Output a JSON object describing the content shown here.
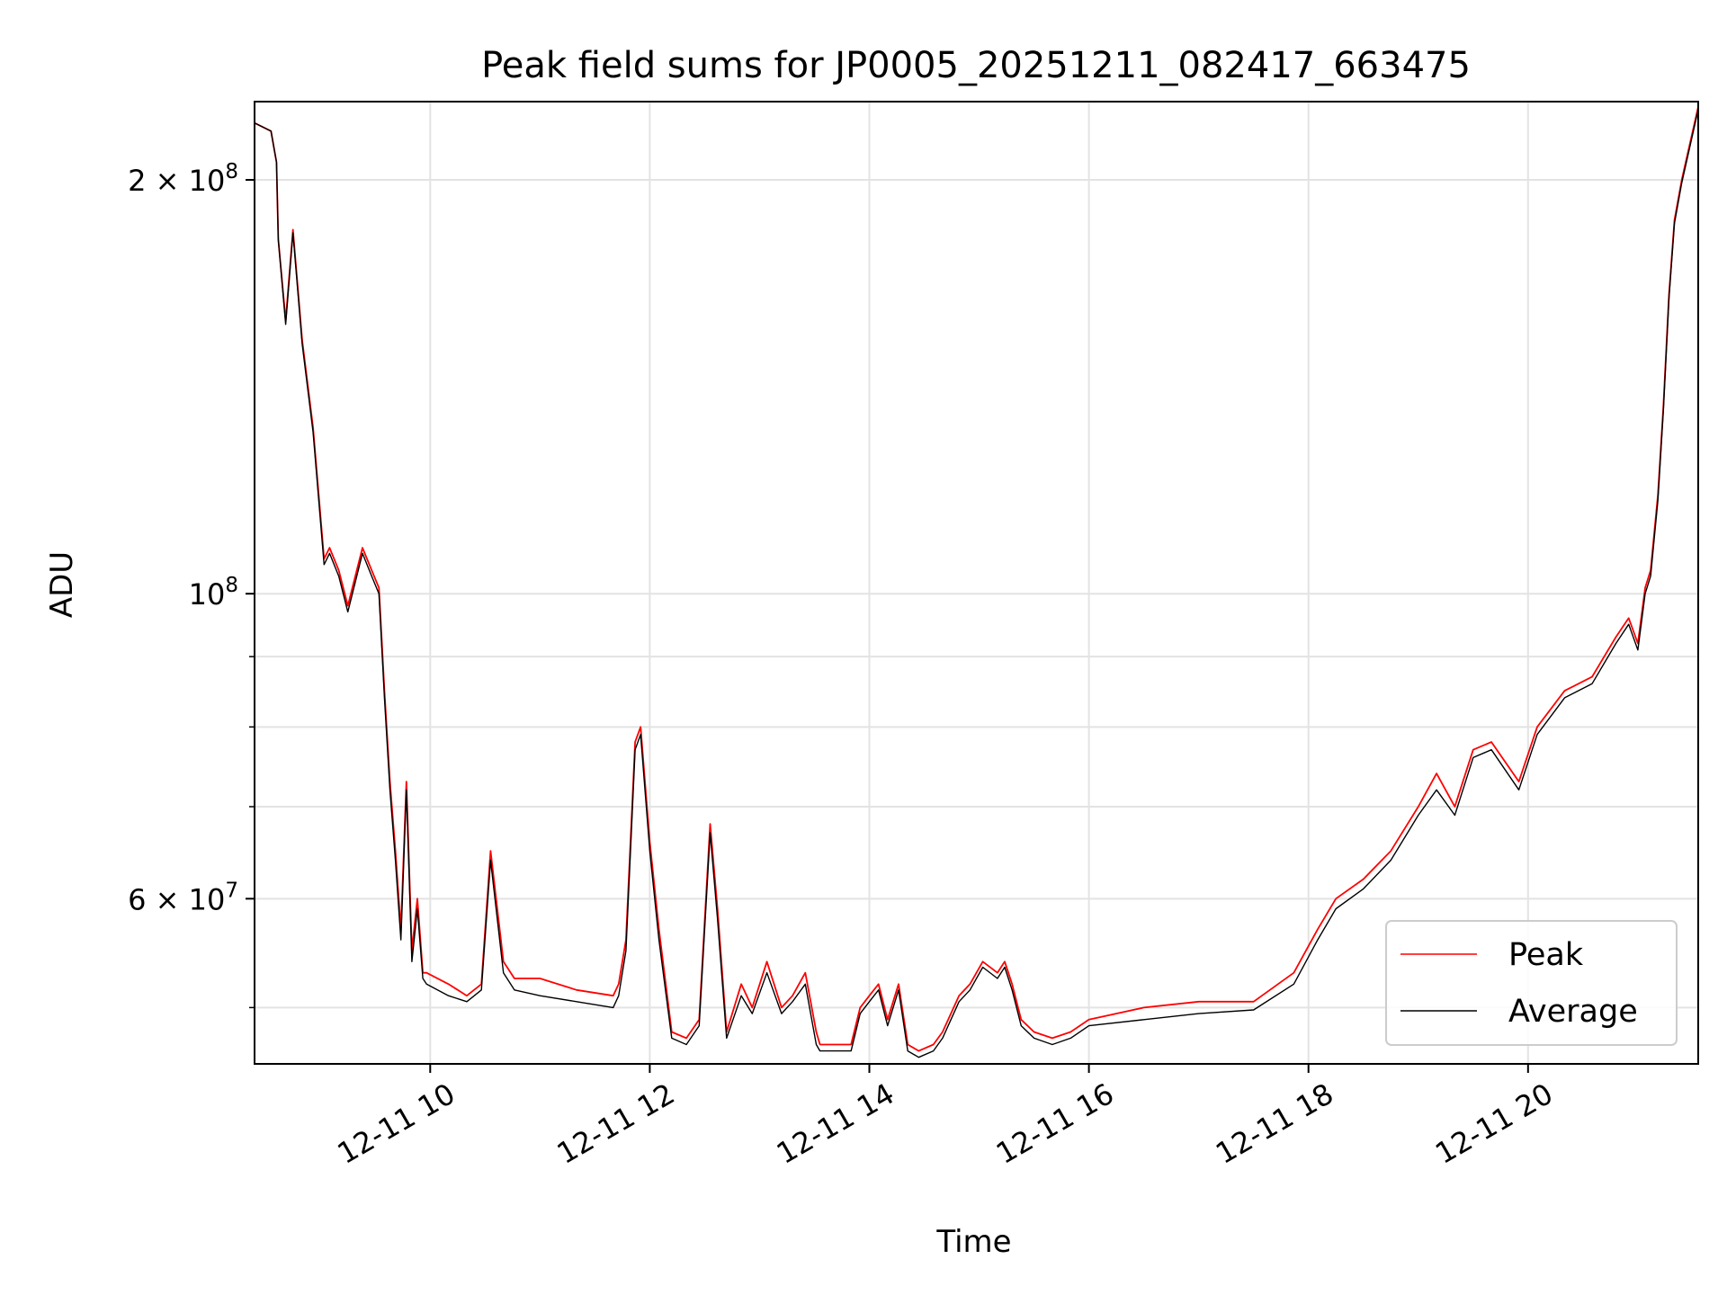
{
  "chart_data": {
    "type": "line",
    "title": "Peak field sums for JP0005_20251211_082417_663475",
    "xlabel": "Time",
    "ylabel": "ADU",
    "yscale": "log",
    "xlim": [
      "2025-12-11 08:24",
      "2025-12-11 21:33"
    ],
    "ylim": [
      45500000.0,
      228000000.0
    ],
    "grid": true,
    "legend_position": "lower-right",
    "x_ticks": [
      {
        "value": "2025-12-11 10:00",
        "label": "12-11 10"
      },
      {
        "value": "2025-12-11 12:00",
        "label": "12-11 12"
      },
      {
        "value": "2025-12-11 14:00",
        "label": "12-11 14"
      },
      {
        "value": "2025-12-11 16:00",
        "label": "12-11 16"
      },
      {
        "value": "2025-12-11 18:00",
        "label": "12-11 18"
      },
      {
        "value": "2025-12-11 20:00",
        "label": "12-11 20"
      }
    ],
    "y_ticks": [
      {
        "value": 200000000,
        "label_base": "2 × 10",
        "label_exp": "8"
      },
      {
        "value": 100000000,
        "label_base": "10",
        "label_exp": "8"
      },
      {
        "value": 60000000,
        "label_base": "6 × 10",
        "label_exp": "7"
      }
    ],
    "series": [
      {
        "name": "Peak",
        "color": "#ff0000",
        "x": [
          "2025-12-11 08:24",
          "2025-12-11 08:33",
          "2025-12-11 08:36",
          "2025-12-11 08:37",
          "2025-12-11 08:41",
          "2025-12-11 08:45",
          "2025-12-11 08:50",
          "2025-12-11 08:56",
          "2025-12-11 09:02",
          "2025-12-11 09:05",
          "2025-12-11 09:10",
          "2025-12-11 09:15",
          "2025-12-11 09:23",
          "2025-12-11 09:28",
          "2025-12-11 09:32",
          "2025-12-11 09:35",
          "2025-12-11 09:38",
          "2025-12-11 09:41",
          "2025-12-11 09:44",
          "2025-12-11 09:47",
          "2025-12-11 09:50",
          "2025-12-11 09:53",
          "2025-12-11 09:56",
          "2025-12-11 09:58",
          "2025-12-11 10:10",
          "2025-12-11 10:20",
          "2025-12-11 10:28",
          "2025-12-11 10:33",
          "2025-12-11 10:40",
          "2025-12-11 10:46",
          "2025-12-11 11:00",
          "2025-12-11 11:20",
          "2025-12-11 11:40",
          "2025-12-11 11:43",
          "2025-12-11 11:47",
          "2025-12-11 11:52",
          "2025-12-11 11:55",
          "2025-12-11 12:00",
          "2025-12-11 12:05",
          "2025-12-11 12:12",
          "2025-12-11 12:20",
          "2025-12-11 12:27",
          "2025-12-11 12:33",
          "2025-12-11 12:37",
          "2025-12-11 12:42",
          "2025-12-11 12:50",
          "2025-12-11 12:56",
          "2025-12-11 13:04",
          "2025-12-11 13:12",
          "2025-12-11 13:18",
          "2025-12-11 13:25",
          "2025-12-11 13:31",
          "2025-12-11 13:33",
          "2025-12-11 13:50",
          "2025-12-11 13:55",
          "2025-12-11 14:00",
          "2025-12-11 14:05",
          "2025-12-11 14:10",
          "2025-12-11 14:16",
          "2025-12-11 14:21",
          "2025-12-11 14:27",
          "2025-12-11 14:35",
          "2025-12-11 14:40",
          "2025-12-11 14:49",
          "2025-12-11 14:55",
          "2025-12-11 15:02",
          "2025-12-11 15:10",
          "2025-12-11 15:14",
          "2025-12-11 15:18",
          "2025-12-11 15:23",
          "2025-12-11 15:30",
          "2025-12-11 15:40",
          "2025-12-11 15:50",
          "2025-12-11 16:00",
          "2025-12-11 16:30",
          "2025-12-11 17:00",
          "2025-12-11 17:30",
          "2025-12-11 17:52",
          "2025-12-11 18:05",
          "2025-12-11 18:15",
          "2025-12-11 18:30",
          "2025-12-11 18:45",
          "2025-12-11 19:00",
          "2025-12-11 19:10",
          "2025-12-11 19:20",
          "2025-12-11 19:30",
          "2025-12-11 19:40",
          "2025-12-11 19:55",
          "2025-12-11 20:05",
          "2025-12-11 20:20",
          "2025-12-11 20:35",
          "2025-12-11 20:48",
          "2025-12-11 20:55",
          "2025-12-11 21:00",
          "2025-12-11 21:04",
          "2025-12-11 21:07",
          "2025-12-11 21:11",
          "2025-12-11 21:14",
          "2025-12-11 21:17",
          "2025-12-11 21:20",
          "2025-12-11 21:24",
          "2025-12-11 21:33"
        ],
        "y": [
          220000000,
          217000000,
          206000000,
          181000000,
          158000000,
          184000000,
          153000000,
          132000000,
          106000000,
          108000000,
          104000000,
          98000000,
          108000000,
          104000000,
          101000000,
          85000000,
          73000000,
          65000000,
          57000000,
          73000000,
          55000000,
          60000000,
          53000000,
          53000000,
          52000000,
          51000000,
          52000000,
          65000000,
          54000000,
          52500000,
          52500000,
          51500000,
          51000000,
          52000000,
          56000000,
          78000000,
          80000000,
          66000000,
          57000000,
          48000000,
          47500000,
          49000000,
          68000000,
          59000000,
          48000000,
          52000000,
          50000000,
          54000000,
          50000000,
          51000000,
          53000000,
          48000000,
          47000000,
          47000000,
          50000000,
          51000000,
          52000000,
          49000000,
          52000000,
          47000000,
          46500000,
          47000000,
          48000000,
          51000000,
          52000000,
          54000000,
          53000000,
          54000000,
          52000000,
          49000000,
          48000000,
          47500000,
          48000000,
          49000000,
          50000000,
          50500000,
          50500000,
          53000000,
          57000000,
          60000000,
          62000000,
          65000000,
          70000000,
          74000000,
          70000000,
          77000000,
          78000000,
          73000000,
          80000000,
          85000000,
          87000000,
          93000000,
          96000000,
          92000000,
          101000000,
          104000000,
          118000000,
          137000000,
          165000000,
          187000000,
          200000000,
          226000000
        ]
      },
      {
        "name": "Average",
        "color": "#000000",
        "x": [
          "2025-12-11 08:24",
          "2025-12-11 08:33",
          "2025-12-11 08:36",
          "2025-12-11 08:37",
          "2025-12-11 08:41",
          "2025-12-11 08:45",
          "2025-12-11 08:50",
          "2025-12-11 08:56",
          "2025-12-11 09:02",
          "2025-12-11 09:05",
          "2025-12-11 09:10",
          "2025-12-11 09:15",
          "2025-12-11 09:23",
          "2025-12-11 09:28",
          "2025-12-11 09:32",
          "2025-12-11 09:35",
          "2025-12-11 09:38",
          "2025-12-11 09:41",
          "2025-12-11 09:44",
          "2025-12-11 09:47",
          "2025-12-11 09:50",
          "2025-12-11 09:53",
          "2025-12-11 09:56",
          "2025-12-11 09:58",
          "2025-12-11 10:10",
          "2025-12-11 10:20",
          "2025-12-11 10:28",
          "2025-12-11 10:33",
          "2025-12-11 10:40",
          "2025-12-11 10:46",
          "2025-12-11 11:00",
          "2025-12-11 11:20",
          "2025-12-11 11:40",
          "2025-12-11 11:43",
          "2025-12-11 11:47",
          "2025-12-11 11:52",
          "2025-12-11 11:55",
          "2025-12-11 12:00",
          "2025-12-11 12:05",
          "2025-12-11 12:12",
          "2025-12-11 12:20",
          "2025-12-11 12:27",
          "2025-12-11 12:33",
          "2025-12-11 12:37",
          "2025-12-11 12:42",
          "2025-12-11 12:50",
          "2025-12-11 12:56",
          "2025-12-11 13:04",
          "2025-12-11 13:12",
          "2025-12-11 13:18",
          "2025-12-11 13:25",
          "2025-12-11 13:31",
          "2025-12-11 13:33",
          "2025-12-11 13:50",
          "2025-12-11 13:55",
          "2025-12-11 14:00",
          "2025-12-11 14:05",
          "2025-12-11 14:10",
          "2025-12-11 14:16",
          "2025-12-11 14:21",
          "2025-12-11 14:27",
          "2025-12-11 14:35",
          "2025-12-11 14:40",
          "2025-12-11 14:49",
          "2025-12-11 14:55",
          "2025-12-11 15:02",
          "2025-12-11 15:10",
          "2025-12-11 15:14",
          "2025-12-11 15:18",
          "2025-12-11 15:23",
          "2025-12-11 15:30",
          "2025-12-11 15:40",
          "2025-12-11 15:50",
          "2025-12-11 16:00",
          "2025-12-11 16:30",
          "2025-12-11 17:00",
          "2025-12-11 17:30",
          "2025-12-11 17:52",
          "2025-12-11 18:05",
          "2025-12-11 18:15",
          "2025-12-11 18:30",
          "2025-12-11 18:45",
          "2025-12-11 19:00",
          "2025-12-11 19:10",
          "2025-12-11 19:20",
          "2025-12-11 19:30",
          "2025-12-11 19:40",
          "2025-12-11 19:55",
          "2025-12-11 20:05",
          "2025-12-11 20:20",
          "2025-12-11 20:35",
          "2025-12-11 20:48",
          "2025-12-11 20:55",
          "2025-12-11 21:00",
          "2025-12-11 21:04",
          "2025-12-11 21:07",
          "2025-12-11 21:11",
          "2025-12-11 21:14",
          "2025-12-11 21:17",
          "2025-12-11 21:20",
          "2025-12-11 21:24",
          "2025-12-11 21:33"
        ],
        "y": [
          220000000,
          217000000,
          206000000,
          181000000,
          157000000,
          183000000,
          152000000,
          131000000,
          105000000,
          107000000,
          103000000,
          97000000,
          107000000,
          103000000,
          100000000,
          84000000,
          72000000,
          64000000,
          56000000,
          72000000,
          54000000,
          59000000,
          52500000,
          52000000,
          51000000,
          50500000,
          51500000,
          64000000,
          53000000,
          51500000,
          51000000,
          50500000,
          50000000,
          51000000,
          55000000,
          77000000,
          79000000,
          65000000,
          56000000,
          47500000,
          47000000,
          48500000,
          67000000,
          58000000,
          47500000,
          51000000,
          49500000,
          53000000,
          49500000,
          50500000,
          52000000,
          47000000,
          46500000,
          46500000,
          49500000,
          50500000,
          51500000,
          48500000,
          51500000,
          46500000,
          46000000,
          46500000,
          47500000,
          50500000,
          51500000,
          53500000,
          52500000,
          53500000,
          51500000,
          48500000,
          47500000,
          47000000,
          47500000,
          48500000,
          49000000,
          49500000,
          49800000,
          52000000,
          56000000,
          59000000,
          61000000,
          64000000,
          69000000,
          72000000,
          69000000,
          76000000,
          77000000,
          72000000,
          79000000,
          84000000,
          86000000,
          92000000,
          95000000,
          91000000,
          100000000,
          103000000,
          117000000,
          136000000,
          164000000,
          186000000,
          199000000,
          225000000
        ]
      }
    ]
  }
}
